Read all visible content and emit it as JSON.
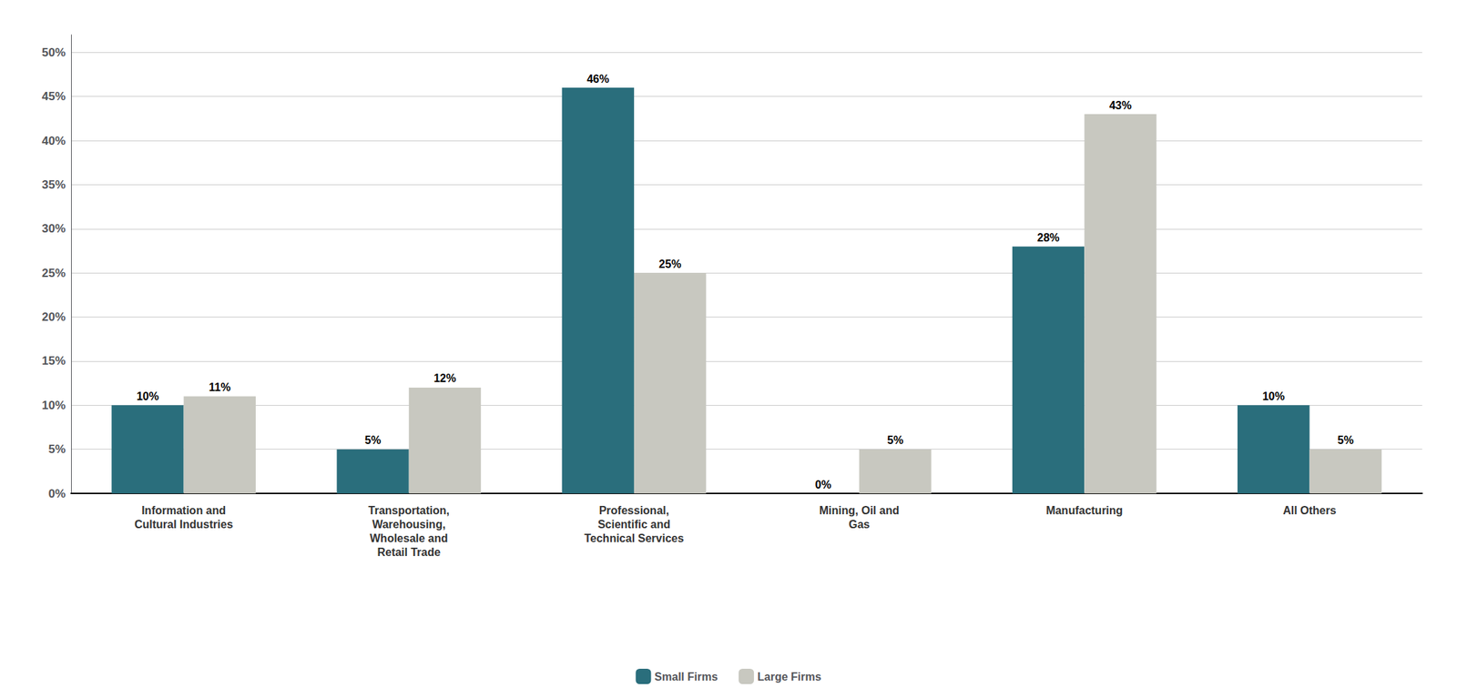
{
  "chart_data": {
    "type": "bar",
    "categories": [
      "Information and\nCultural Industries",
      "Transportation,\nWarehousing,\nWholesale and\nRetail Trade",
      "Professional,\nScientific and\nTechnical Services",
      "Mining, Oil and\nGas",
      "Manufacturing",
      "All Others"
    ],
    "series": [
      {
        "name": "Small Firms",
        "color": "#2a6e7c",
        "values": [
          10,
          5,
          46,
          0,
          28,
          10
        ],
        "value_labels": [
          "10%",
          "5%",
          "46%",
          "0%",
          "28%",
          "10%"
        ]
      },
      {
        "name": "Large Firms",
        "color": "#c8c8c0",
        "values": [
          11,
          12,
          25,
          5,
          43,
          5
        ],
        "value_labels": [
          "11%",
          "12%",
          "25%",
          "5%",
          "43%",
          "5%"
        ]
      }
    ],
    "ylim": [
      0,
      52
    ],
    "yticks": [
      {
        "value": 0,
        "label": "0%"
      },
      {
        "value": 5,
        "label": "5%"
      },
      {
        "value": 10,
        "label": "10%"
      },
      {
        "value": 15,
        "label": "15%"
      },
      {
        "value": 20,
        "label": "20%"
      },
      {
        "value": 25,
        "label": "25%"
      },
      {
        "value": 30,
        "label": "30%"
      },
      {
        "value": 35,
        "label": "35%"
      },
      {
        "value": 40,
        "label": "40%"
      },
      {
        "value": 45,
        "label": "45%"
      },
      {
        "value": 50,
        "label": "50%"
      }
    ],
    "grid": true,
    "legend": "bottom",
    "data_labels": true
  }
}
